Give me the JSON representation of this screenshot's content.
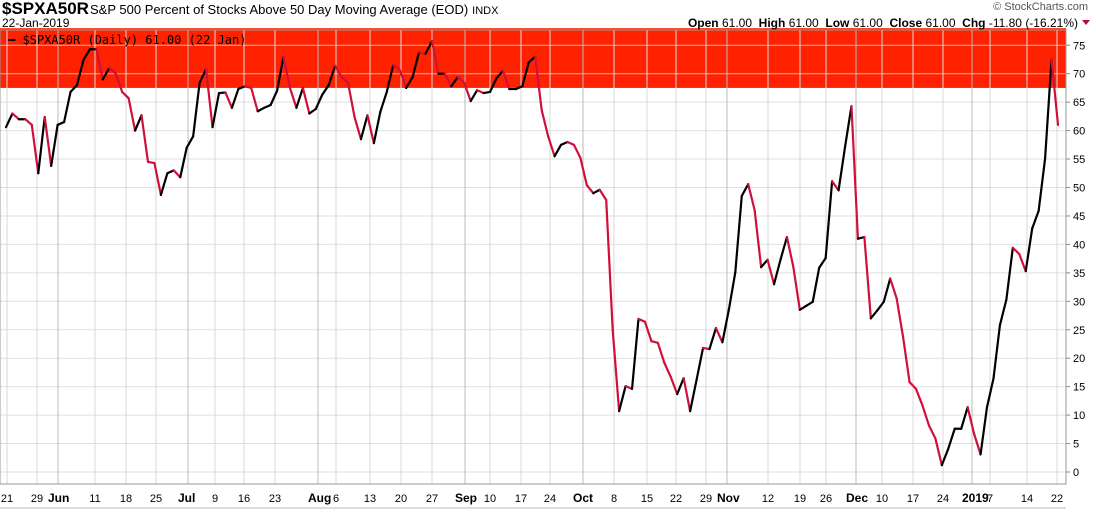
{
  "header": {
    "symbol": "$SPXA50R",
    "title": "S&P 500 Percent of Stocks Above 50 Day Moving Average (EOD)",
    "exchange": "INDX",
    "date": "22-Jan-2019",
    "brand": "© StockCharts.com",
    "open_label": "Open",
    "open": "61.00",
    "high_label": "High",
    "high": "61.00",
    "low_label": "Low",
    "low": "61.00",
    "close_label": "Close",
    "close": "61.00",
    "chg_label": "Chg",
    "chg": "-11.80 (-16.21%)"
  },
  "legend": {
    "text": "$SPXA50R (Daily) 61.00 (22 Jan)"
  },
  "colors": {
    "band": "#ff2200",
    "up": "#000000",
    "down": "#d0103a",
    "grid": "#d8d8d8"
  },
  "chart_data": {
    "type": "line",
    "title": "S&P 500 Percent of Stocks Above 50 Day Moving Average (EOD)",
    "series": [
      {
        "name": "$SPXA50R (Daily)",
        "values": [
          60.6,
          63,
          62,
          62,
          61,
          52.5,
          62.4,
          53.8,
          61,
          61.5,
          66.8,
          68,
          72.4,
          74.3,
          74.3,
          69,
          71,
          70,
          66.8,
          65.7,
          60,
          62.7,
          54.5,
          54.3,
          48.7,
          52.5,
          53,
          51.8,
          57,
          59,
          68.4,
          70.8,
          60.6,
          66.6,
          66.7,
          64,
          67.3,
          67.8,
          67.5,
          63.4,
          64,
          64.5,
          67,
          73,
          67.5,
          64,
          67.5,
          63,
          63.8,
          66.3,
          68,
          71.4,
          69.4,
          68.4,
          62.4,
          58.5,
          62.7,
          57.8,
          63.3,
          66.8,
          71.5,
          70.7,
          67.5,
          69.4,
          73.8,
          73.5,
          75.7,
          70,
          70,
          67.8,
          69.4,
          68.4,
          65.2,
          67.1,
          66.6,
          66.8,
          69.2,
          70.5,
          67.3,
          67.3,
          67.8,
          72,
          73,
          63.6,
          59,
          55.5,
          57.5,
          58,
          57.5,
          55.2,
          50.4,
          49,
          49.6,
          47.8,
          25,
          10.7,
          15.1,
          14.6,
          26.9,
          26.4,
          23,
          22.7,
          19.2,
          16.7,
          13.7,
          16.5,
          10.7,
          16.2,
          21.8,
          21.6,
          25.3,
          22.8,
          28.5,
          35.1,
          48.5,
          50.6,
          46,
          36,
          37.3,
          33,
          37.3,
          41.3,
          36,
          28.5,
          29.2,
          29.9,
          35.9,
          37.6,
          51.1,
          49.5,
          57.1,
          64.3,
          41,
          41.3,
          27,
          28.4,
          29.9,
          34,
          30.5,
          23.7,
          15.8,
          14.6,
          11.7,
          8.2,
          5.9,
          1.2,
          4.1,
          7.6,
          7.6,
          11.4,
          6.7,
          3.1,
          11.4,
          16.4,
          25.8,
          30.3,
          39.4,
          38.3,
          35.3,
          42.8,
          45.9,
          55.1,
          72.5,
          61
        ]
      }
    ],
    "x_range": [
      "2018-05-21",
      "2019-01-22"
    ],
    "x_tick_labels": [
      "21",
      "29",
      "Jun",
      "11",
      "18",
      "25",
      "Jul",
      "9",
      "16",
      "23",
      "Aug",
      "6",
      "13",
      "20",
      "27",
      "Sep",
      "10",
      "17",
      "24",
      "Oct",
      "8",
      "15",
      "22",
      "29",
      "Nov",
      "12",
      "19",
      "26",
      "Dec",
      "10",
      "17",
      "24",
      "2019",
      "7",
      "14",
      "22"
    ],
    "y_tick_labels": [
      "0",
      "5",
      "10",
      "15",
      "20",
      "25",
      "30",
      "35",
      "40",
      "45",
      "50",
      "55",
      "60",
      "65",
      "70",
      "75"
    ],
    "ylim": [
      0,
      78
    ],
    "shaded_band": [
      67.5,
      78
    ],
    "y_axis_side": "right",
    "grid": true
  }
}
